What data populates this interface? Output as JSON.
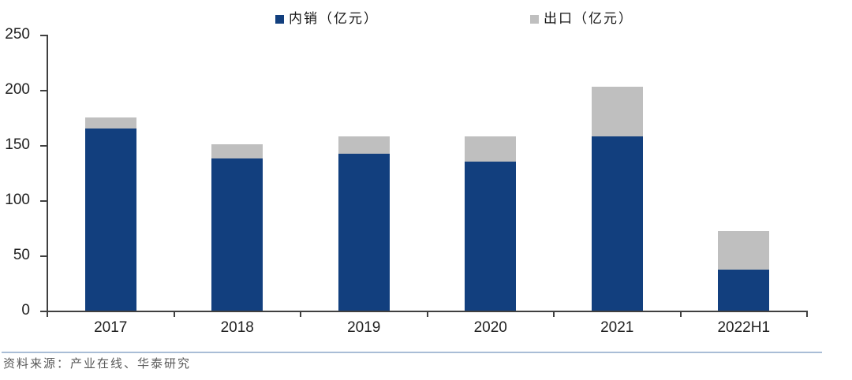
{
  "footer": {
    "source": "资料来源：产业在线、华泰研究"
  },
  "colors": {
    "axis": "#404040",
    "tick_label": "#212121",
    "divider": "#a9bdd6",
    "source_text": "#595959",
    "domestic_blue": "#123f7e",
    "export_gray": "#bfbfbf"
  },
  "chart_data": {
    "type": "bar",
    "stacked": true,
    "title": "",
    "xlabel": "",
    "ylabel": "",
    "categories": [
      "2017",
      "2018",
      "2019",
      "2020",
      "2021",
      "2022H1"
    ],
    "series": [
      {
        "name": "内销（亿元）",
        "color": "#123f7e",
        "values": [
          165,
          138,
          142,
          135,
          158,
          37
        ]
      },
      {
        "name": "出口（亿元）",
        "color": "#bfbfbf",
        "values": [
          10,
          13,
          16,
          23,
          45,
          35
        ]
      }
    ],
    "totals": [
      175,
      151,
      158,
      158,
      203,
      72
    ],
    "ylim": [
      0,
      250
    ],
    "yticks": [
      0,
      50,
      100,
      150,
      200,
      250
    ],
    "grid": false,
    "legend_position": "top"
  }
}
